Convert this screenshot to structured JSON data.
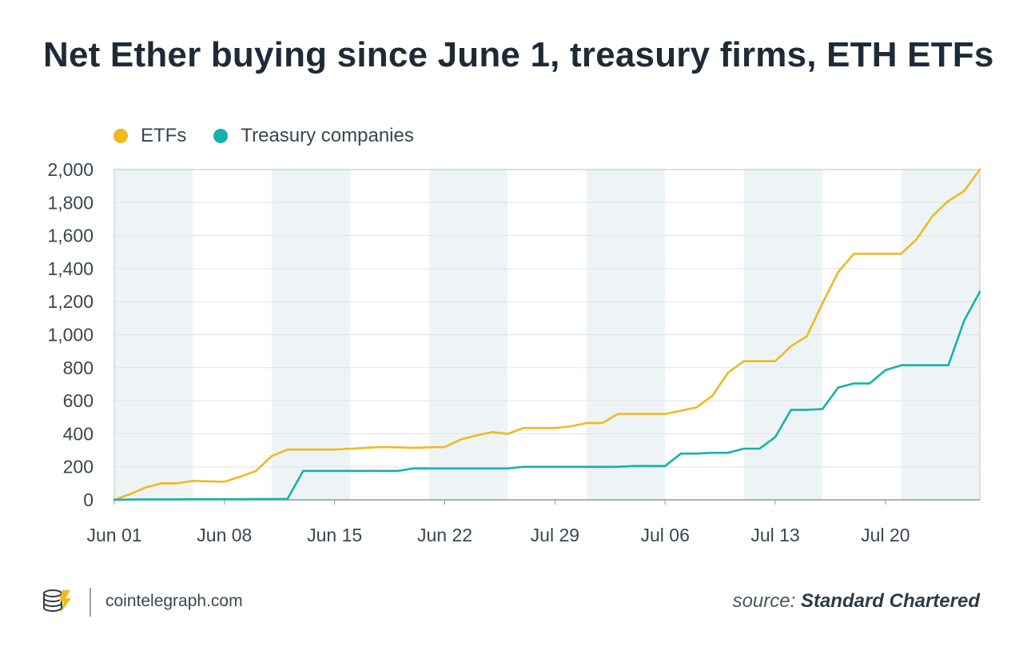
{
  "title": "Net Ether buying since June 1, treasury firms, ETH ETFs",
  "footer": {
    "site": "cointelegraph.com",
    "source_label": "source:",
    "source_name": "Standard Chartered"
  },
  "colors": {
    "etf": "#f0b91e",
    "treasury": "#16b2a9",
    "band": "#eef4f6",
    "grid": "#dde5ea",
    "axis": "#8e99a3",
    "text": "#3a4651"
  },
  "icons": {
    "logo": "cointelegraph-coin-stack-icon"
  },
  "chart_data": {
    "type": "line",
    "title": "Net Ether buying since June 1, treasury firms, ETH ETFs",
    "xlabel": "",
    "ylabel": "",
    "ylim": [
      0,
      2000
    ],
    "yticks": [
      0,
      200,
      400,
      600,
      800,
      1000,
      1200,
      1400,
      1600,
      1800,
      2000
    ],
    "ytick_labels": [
      "0",
      "200",
      "400",
      "600",
      "800",
      "1,000",
      "1,200",
      "1,400",
      "1,600",
      "1,800",
      "2,000"
    ],
    "x_count": 56,
    "xticks": [
      {
        "index": 0,
        "label": "Jun 01"
      },
      {
        "index": 7,
        "label": "Jun 08"
      },
      {
        "index": 14,
        "label": "Jun 15"
      },
      {
        "index": 21,
        "label": "Jun 22"
      },
      {
        "index": 28,
        "label": "Jul 29"
      },
      {
        "index": 35,
        "label": "Jul 06"
      },
      {
        "index": 42,
        "label": "Jul 13"
      },
      {
        "index": 49,
        "label": "Jul 20"
      }
    ],
    "grid": true,
    "legend_position": "top-left",
    "series": [
      {
        "name": "ETFs",
        "color": "#f0b91e",
        "values": [
          0,
          35,
          75,
          100,
          100,
          115,
          112,
          110,
          140,
          175,
          265,
          305,
          305,
          305,
          305,
          310,
          315,
          320,
          318,
          315,
          318,
          320,
          365,
          390,
          410,
          400,
          435,
          435,
          435,
          445,
          465,
          465,
          520,
          520,
          520,
          520,
          540,
          560,
          630,
          770,
          840,
          840,
          840,
          930,
          990,
          1190,
          1380,
          1490,
          1490,
          1490,
          1490,
          1580,
          1720,
          1810,
          1870,
          2000
        ]
      },
      {
        "name": "Treasury companies",
        "color": "#16b2a9",
        "values": [
          0,
          2,
          3,
          3,
          3,
          4,
          4,
          4,
          4,
          5,
          5,
          5,
          175,
          175,
          175,
          175,
          175,
          175,
          175,
          190,
          190,
          190,
          190,
          190,
          190,
          190,
          200,
          200,
          200,
          200,
          200,
          200,
          200,
          205,
          205,
          205,
          280,
          280,
          285,
          285,
          310,
          310,
          380,
          545,
          545,
          550,
          680,
          705,
          705,
          785,
          815,
          815,
          815,
          815,
          1085,
          1260
        ]
      }
    ]
  }
}
